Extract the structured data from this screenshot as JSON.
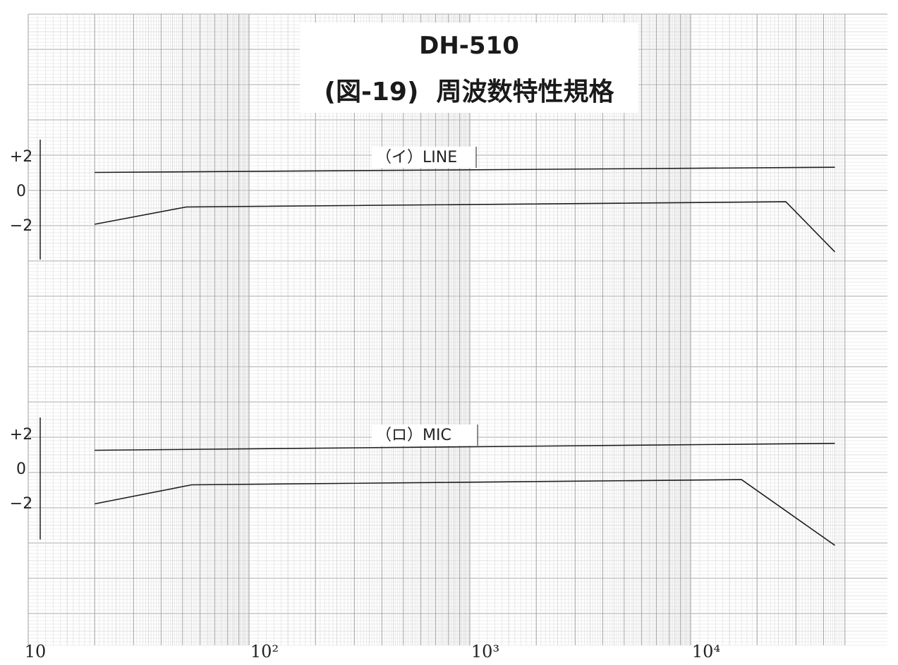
{
  "title": "DH-510",
  "subtitle": "(図-19)  周波数特性規格",
  "colors": {
    "paper": "#ffffff",
    "grid_fine": "#dcdcdc",
    "grid_medium": "#c4c4c4",
    "grid_major": "#a8a8a8",
    "ink": "#1e1e1e"
  },
  "chart_data": [
    {
      "type": "line",
      "panel_label": "（イ）LINE",
      "x_scale": "log",
      "xlim": [
        10,
        50000
      ],
      "y_ticks": [
        {
          "value": 2,
          "label": "+2"
        },
        {
          "value": 0,
          "label": "0"
        },
        {
          "value": -2,
          "label": "−2"
        }
      ],
      "series": [
        {
          "x": [
            20,
            45000
          ],
          "y": [
            1.0,
            1.3
          ]
        },
        {
          "x": [
            20,
            52,
            27000,
            45000
          ],
          "y": [
            -2.0,
            -1.0,
            -0.7,
            -3.6
          ]
        }
      ]
    },
    {
      "type": "line",
      "panel_label": "（ロ）MIC",
      "x_scale": "log",
      "xlim": [
        10,
        50000
      ],
      "y_ticks": [
        {
          "value": 2,
          "label": "+2"
        },
        {
          "value": 0,
          "label": "0"
        },
        {
          "value": -2,
          "label": "−2"
        }
      ],
      "series": [
        {
          "x": [
            20,
            45000
          ],
          "y": [
            1.0,
            1.4
          ]
        },
        {
          "x": [
            20,
            55,
            17000,
            45000
          ],
          "y": [
            -2.1,
            -1.0,
            -0.7,
            -4.5
          ]
        }
      ]
    }
  ],
  "x_ticks": [
    {
      "value": 10,
      "label": "10"
    },
    {
      "value": 100,
      "label": "10²"
    },
    {
      "value": 1000,
      "label": "10³"
    },
    {
      "value": 10000,
      "label": "10⁴"
    }
  ]
}
